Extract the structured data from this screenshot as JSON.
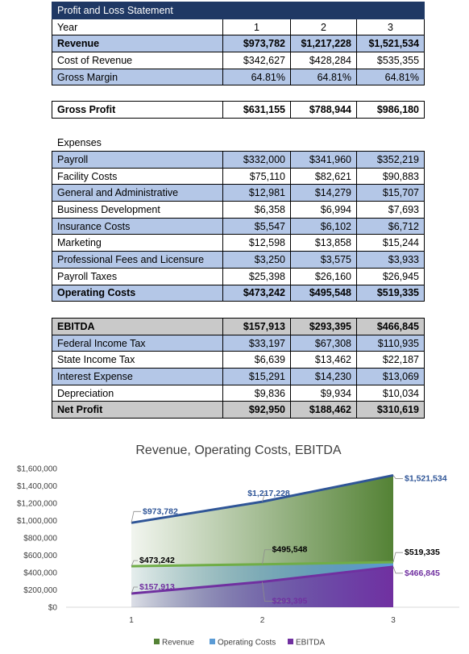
{
  "statement": {
    "title": "Profit and Loss Statement",
    "year_label": "Year",
    "years": [
      "1",
      "2",
      "3"
    ],
    "revenue": {
      "label": "Revenue",
      "values": [
        "$973,782",
        "$1,217,228",
        "$1,521,534"
      ]
    },
    "cost_of_revenue": {
      "label": "Cost of Revenue",
      "values": [
        "$342,627",
        "$428,284",
        "$535,355"
      ]
    },
    "gross_margin": {
      "label": "Gross Margin",
      "values": [
        "64.81%",
        "64.81%",
        "64.81%"
      ]
    }
  },
  "gross_profit": {
    "label": "Gross Profit",
    "values": [
      "$631,155",
      "$788,944",
      "$986,180"
    ]
  },
  "expenses": {
    "heading": "Expenses",
    "rows": [
      {
        "label": "Payroll",
        "values": [
          "$332,000",
          "$341,960",
          "$352,219"
        ]
      },
      {
        "label": "Facility Costs",
        "values": [
          "$75,110",
          "$82,621",
          "$90,883"
        ]
      },
      {
        "label": "General and Administrative",
        "values": [
          "$12,981",
          "$14,279",
          "$15,707"
        ]
      },
      {
        "label": "Business Development",
        "values": [
          "$6,358",
          "$6,994",
          "$7,693"
        ]
      },
      {
        "label": "Insurance Costs",
        "values": [
          "$5,547",
          "$6,102",
          "$6,712"
        ]
      },
      {
        "label": "Marketing",
        "values": [
          "$12,598",
          "$13,858",
          "$15,244"
        ]
      },
      {
        "label": "Professional Fees and Licensure",
        "values": [
          "$3,250",
          "$3,575",
          "$3,933"
        ]
      },
      {
        "label": "Payroll Taxes",
        "values": [
          "$25,398",
          "$26,160",
          "$26,945"
        ]
      }
    ],
    "total": {
      "label": "Operating Costs",
      "values": [
        "$473,242",
        "$495,548",
        "$519,335"
      ]
    }
  },
  "ebitda": {
    "header": {
      "label": "EBITDA",
      "values": [
        "$157,913",
        "$293,395",
        "$466,845"
      ]
    },
    "rows": [
      {
        "label": "Federal Income Tax",
        "values": [
          "$33,197",
          "$67,308",
          "$110,935"
        ]
      },
      {
        "label": "State Income Tax",
        "values": [
          "$6,639",
          "$13,462",
          "$22,187"
        ]
      },
      {
        "label": "Interest Expense",
        "values": [
          "$15,291",
          "$14,230",
          "$13,069"
        ]
      },
      {
        "label": "Depreciation",
        "values": [
          "$9,836",
          "$9,934",
          "$10,034"
        ]
      }
    ],
    "net_profit": {
      "label": "Net Profit",
      "values": [
        "$92,950",
        "$188,462",
        "$310,619"
      ]
    }
  },
  "chart_data": {
    "type": "area",
    "title": "Revenue, Operating Costs, EBITDA",
    "categories": [
      "1",
      "2",
      "3"
    ],
    "ylim": [
      0,
      1600000
    ],
    "yticks": [
      0,
      200000,
      400000,
      600000,
      800000,
      1000000,
      1200000,
      1400000,
      1600000
    ],
    "ytick_labels": [
      "$0",
      "$200,000",
      "$400,000",
      "$600,000",
      "$800,000",
      "$1,000,000",
      "$1,200,000",
      "$1,400,000",
      "$1,600,000"
    ],
    "grid": false,
    "legend": "bottom",
    "series": [
      {
        "name": "Revenue",
        "values": [
          973782,
          1217228,
          1521534
        ],
        "labels": [
          "$973,782",
          "$1,217,228",
          "$1,521,534"
        ],
        "line_color": "#2f5597",
        "fill_color": "#548235",
        "label_color": "#2f5597"
      },
      {
        "name": "Operating Costs",
        "values": [
          473242,
          495548,
          519335
        ],
        "labels": [
          "$473,242",
          "$495,548",
          "$519,335"
        ],
        "line_color": "#70ad47",
        "fill_color": "#5b9bd5",
        "label_color": "#000000"
      },
      {
        "name": "EBITDA",
        "values": [
          157913,
          293395,
          466845
        ],
        "labels": [
          "$157,913",
          "$293,395",
          "$466,845"
        ],
        "line_color": "#7030a0",
        "fill_color": "#7030a0",
        "label_color": "#7030a0"
      }
    ]
  }
}
